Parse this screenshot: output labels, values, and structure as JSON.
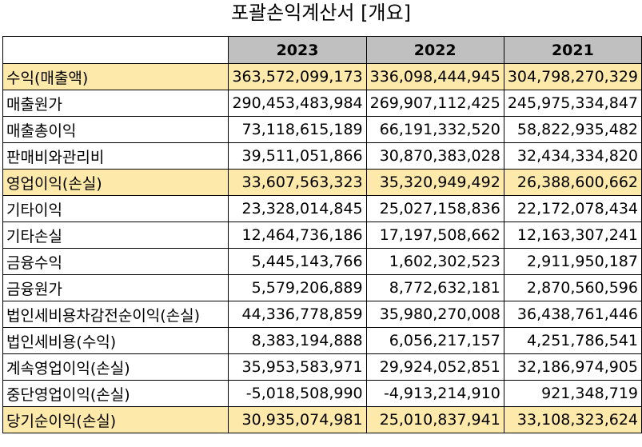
{
  "title": "포괄손익계산서 [개요]",
  "columns": [
    "2023",
    "2022",
    "2021"
  ],
  "rows": [
    {
      "label": "수익(매출액)",
      "values": [
        "363,572,099,173",
        "336,098,444,945",
        "304,798,270,329"
      ],
      "highlight": true
    },
    {
      "label": "매출원가",
      "values": [
        "290,453,483,984",
        "269,907,112,425",
        "245,975,334,847"
      ],
      "highlight": false
    },
    {
      "label": "매출총이익",
      "values": [
        "73,118,615,189",
        "66,191,332,520",
        "58,822,935,482"
      ],
      "highlight": false
    },
    {
      "label": "판매비와관리비",
      "values": [
        "39,511,051,866",
        "30,870,383,028",
        "32,434,334,820"
      ],
      "highlight": false
    },
    {
      "label": "영업이익(손실)",
      "values": [
        "33,607,563,323",
        "35,320,949,492",
        "26,388,600,662"
      ],
      "highlight": true
    },
    {
      "label": "기타이익",
      "values": [
        "23,328,014,845",
        "25,027,158,836",
        "22,172,078,434"
      ],
      "highlight": false
    },
    {
      "label": "기타손실",
      "values": [
        "12,464,736,186",
        "17,197,508,662",
        "12,163,307,241"
      ],
      "highlight": false
    },
    {
      "label": "금융수익",
      "values": [
        "5,445,143,766",
        "1,602,302,523",
        "2,911,950,187"
      ],
      "highlight": false
    },
    {
      "label": "금융원가",
      "values": [
        "5,579,206,889",
        "8,772,632,181",
        "2,870,560,596"
      ],
      "highlight": false
    },
    {
      "label": "법인세비용차감전순이익(손실)",
      "values": [
        "44,336,778,859",
        "35,980,270,008",
        "36,438,761,446"
      ],
      "highlight": false
    },
    {
      "label": "법인세비용(수익)",
      "values": [
        "8,383,194,888",
        "6,056,217,157",
        "4,251,786,541"
      ],
      "highlight": false
    },
    {
      "label": "계속영업이익(손실)",
      "values": [
        "35,953,583,971",
        "29,924,052,851",
        "32,186,974,905"
      ],
      "highlight": false
    },
    {
      "label": "중단영업이익(손실)",
      "values": [
        "-5,018,508,990",
        "-4,913,214,910",
        "921,348,719"
      ],
      "highlight": false
    },
    {
      "label": "당기순이익(손실)",
      "values": [
        "30,935,074,981",
        "25,010,837,941",
        "33,108,323,624"
      ],
      "highlight": true
    }
  ],
  "colors": {
    "header_bg": "#c0c0c0",
    "highlight_bg": "#fde9a9",
    "border": "#000000"
  }
}
